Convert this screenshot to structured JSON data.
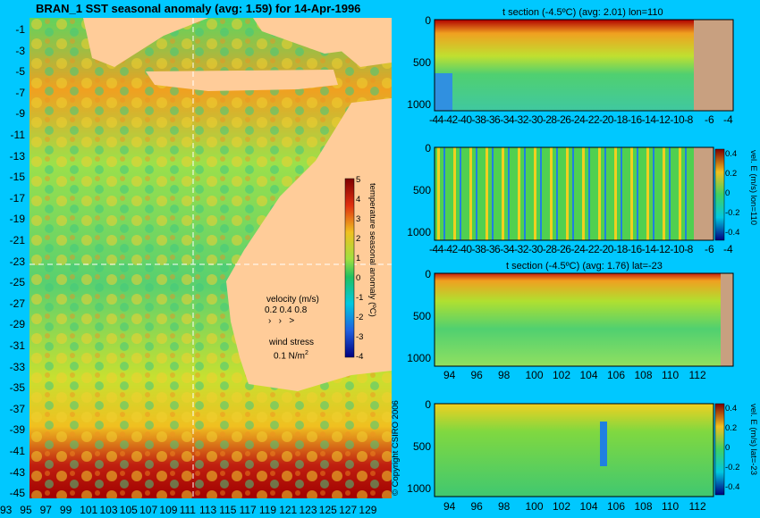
{
  "map": {
    "title": "BRAN_1 SST seasonal anomaly (avg: 1.59) for 14-Apr-1996",
    "lat_ticks": [
      "-1",
      "-3",
      "-5",
      "-7",
      "-9",
      "-11",
      "-13",
      "-15",
      "-17",
      "-19",
      "-21",
      "-23",
      "-25",
      "-27",
      "-29",
      "-31",
      "-33",
      "-35",
      "-37",
      "-39",
      "-41",
      "-43",
      "-45"
    ],
    "lon_ticks": [
      "93",
      "95",
      "97",
      "99",
      "101",
      "103",
      "105",
      "107",
      "109",
      "111",
      "113",
      "115",
      "117",
      "119",
      "121",
      "123",
      "125",
      "127",
      "129"
    ],
    "colorbar_label": "temperature seasonal anomaly (ºC)",
    "colorbar_ticks": [
      "5",
      "4",
      "3",
      "2",
      "1",
      "0",
      "-1",
      "-2",
      "-3",
      "-4"
    ],
    "velocity_label": "velocity (m/s)",
    "velocity_values": "0.2 0.4 0.8",
    "wind_label": "wind stress",
    "wind_value": "0.1 N/m",
    "wind_sup": "2",
    "copyright": "© Copyright CSIRO 2006"
  },
  "panels": [
    {
      "title": "t section (-4.5ºC) (avg: 2.01) lon=110"
    },
    {
      "title": "",
      "colorbar_label": "vel. E (m/s) lon=110"
    },
    {
      "title": "t section (-4.5ºC) (avg: 1.76) lat=-23"
    },
    {
      "title": "",
      "colorbar_label": "vel. E (m/s) lat=-23"
    }
  ],
  "section_y_ticks": [
    "0",
    "500",
    "1000"
  ],
  "lat_section_ticks": [
    "-44",
    "-42",
    "-40",
    "-38",
    "-36",
    "-34",
    "-32",
    "-30",
    "-28",
    "-26",
    "-24",
    "-22",
    "-20",
    "-18",
    "-16",
    "-14",
    "-12",
    "-10",
    "-8",
    "-6",
    "-4"
  ],
  "lat_section_ticks_packed": "-44-42-40-38-36-34-32-30-28-26-24-22-20-18-16-14-12-10-8",
  "lat_section_ticks_tail": [
    "-6",
    "-4"
  ],
  "lon_section_ticks": [
    "94",
    "96",
    "98",
    "100",
    "102",
    "104",
    "106",
    "108",
    "110",
    "112"
  ],
  "vel_colorbar_ticks": [
    "0.4",
    "0.2",
    "0",
    "-0.2",
    "-0.4"
  ],
  "colors": {
    "background": "#00c8ff",
    "land": "#ffcc99",
    "section_land": "#c8a080"
  },
  "chart_data": [
    {
      "type": "heatmap",
      "title": "BRAN_1 SST seasonal anomaly (avg: 1.59) for 14-Apr-1996",
      "xlabel": "",
      "ylabel": "",
      "xlim": [
        93,
        130
      ],
      "ylim": [
        -45,
        0
      ],
      "colorbar_range": [
        -4,
        5
      ],
      "colorbar_label": "temperature seasonal anomaly (ºC)"
    },
    {
      "type": "heatmap",
      "title": "t section (-4.5ºC) (avg: 2.01) lon=110",
      "xlim": [
        -45,
        -3
      ],
      "ylim": [
        1050,
        0
      ]
    },
    {
      "type": "heatmap",
      "title": "",
      "colorbar_label": "vel. E (m/s) lon=110",
      "colorbar_range": [
        -0.4,
        0.4
      ],
      "xlim": [
        -45,
        -3
      ],
      "ylim": [
        1050,
        0
      ]
    },
    {
      "type": "heatmap",
      "title": "t section (-4.5ºC) (avg: 1.76) lat=-23",
      "xlim": [
        93,
        114
      ],
      "ylim": [
        1050,
        0
      ]
    },
    {
      "type": "heatmap",
      "title": "",
      "colorbar_label": "vel. E (m/s) lat=-23",
      "colorbar_range": [
        -0.4,
        0.4
      ],
      "xlim": [
        93,
        114
      ],
      "ylim": [
        1050,
        0
      ]
    }
  ]
}
